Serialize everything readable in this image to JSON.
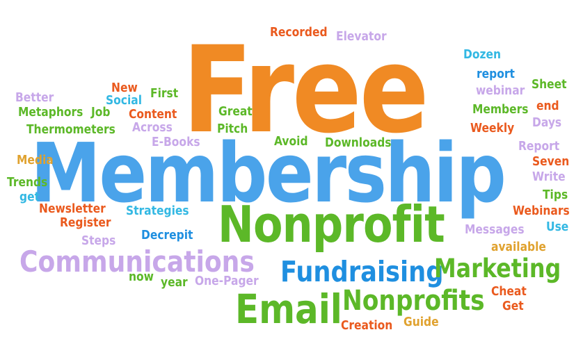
{
  "colors": {
    "orange": "#f08a24",
    "blue": "#4aa3ea",
    "green": "#5cb828",
    "lavender": "#c7a7e9",
    "red": "#ea5a1e",
    "cyan": "#33b8e3",
    "lightblue": "#1f8fe0",
    "gold": "#e0a22f"
  },
  "words": {
    "free": "Free",
    "membership": "Membership",
    "nonprofit": "Nonprofit",
    "communications": "Communications",
    "fundraising": "Fundraising",
    "marketing": "Marketing",
    "email": "Email",
    "nonprofits": "Nonprofits",
    "recorded": "Recorded",
    "elevator": "Elevator",
    "dozen": "Dozen",
    "report_lower": "report",
    "webinar": "webinar",
    "sheet": "Sheet",
    "members": "Members",
    "end": "end",
    "weekly": "Weekly",
    "days": "Days",
    "report": "Report",
    "seven": "Seven",
    "write": "Write",
    "tips": "Tips",
    "webinars": "Webinars",
    "use": "Use",
    "messages": "Messages",
    "available": "available",
    "cheat": "Cheat",
    "get_right": "Get",
    "guide": "Guide",
    "creation": "Creation",
    "better": "Better",
    "new": "New",
    "social": "Social",
    "first": "First",
    "metaphors": "Metaphors",
    "job": "Job",
    "content": "Content",
    "great": "Great",
    "thermometers": "Thermometers",
    "across": "Across",
    "pitch": "Pitch",
    "ebooks": "E-Books",
    "avoid": "Avoid",
    "downloads": "Downloads",
    "media": "Media",
    "trends": "Trends",
    "get_left": "get",
    "newsletter": "Newsletter",
    "strategies": "Strategies",
    "register": "Register",
    "decrepit": "Decrepit",
    "steps": "Steps",
    "now": "now",
    "year": "year",
    "onepager": "One-Pager"
  }
}
